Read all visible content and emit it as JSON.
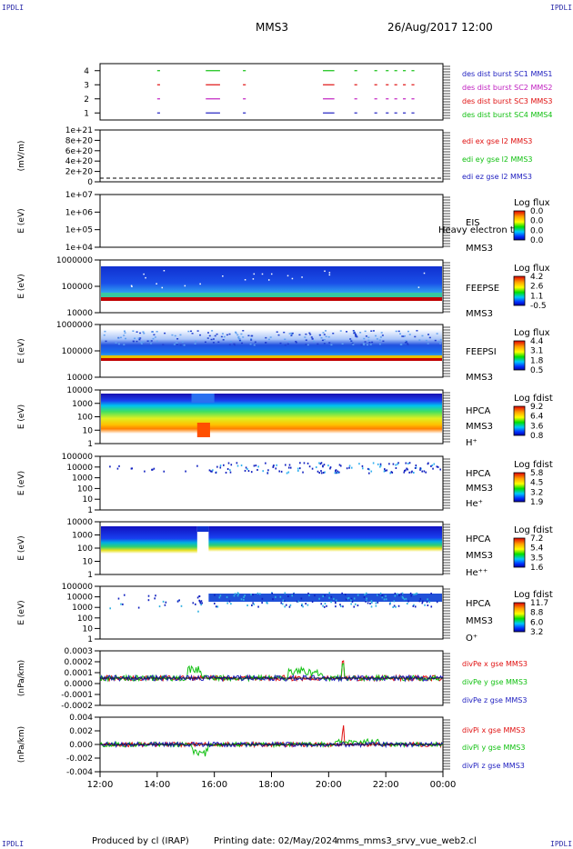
{
  "corners": {
    "tl": "IPDLI",
    "tr": "IPDLI",
    "bl": "IPDLI",
    "br": "IPDLI"
  },
  "header": {
    "spacecraft": "MMS3",
    "datetime": "26/Aug/2017 12:00"
  },
  "footer": {
    "produced_by": "Produced by cl (IRAP)",
    "printing_date": "Printing date: 02/May/2024",
    "product": "mms_mms3_srvy_vue_web2.cl"
  },
  "colors": {
    "mms1": "#2020c0",
    "mms2": "#c020c0",
    "mms3": "#e01010",
    "mms4": "#10c010",
    "x": "#e01010",
    "y": "#10c010",
    "z": "#2020c0"
  },
  "chart_data": [
    {
      "id": "burst",
      "type": "line",
      "ylim": [
        0.5,
        4.5
      ],
      "ticks": [
        "1",
        "2",
        "3",
        "4"
      ],
      "legend": [
        "des dist burst SC1 MMS1",
        "des dist burst SC2 MMS2",
        "des dist burst SC3 MMS3",
        "des dist burst SC4 MMS4"
      ],
      "series": [
        {
          "level": 4,
          "color": "#10c010",
          "segments": [
            [
              14.0,
              14.1
            ],
            [
              15.7,
              16.2
            ],
            [
              17.0,
              17.1
            ],
            [
              19.8,
              20.2
            ],
            [
              20.9,
              21.0
            ],
            [
              21.6,
              21.7
            ],
            [
              22.0,
              22.1
            ],
            [
              22.3,
              22.4
            ],
            [
              22.6,
              22.7
            ],
            [
              22.9,
              23.0
            ]
          ]
        },
        {
          "level": 3,
          "color": "#e01010",
          "segments": [
            [
              14.0,
              14.1
            ],
            [
              15.7,
              16.2
            ],
            [
              17.0,
              17.1
            ],
            [
              19.8,
              20.2
            ],
            [
              20.9,
              21.0
            ],
            [
              21.6,
              21.7
            ],
            [
              22.0,
              22.1
            ],
            [
              22.3,
              22.4
            ],
            [
              22.6,
              22.7
            ],
            [
              22.9,
              23.0
            ]
          ]
        },
        {
          "level": 2,
          "color": "#c020c0",
          "segments": [
            [
              14.0,
              14.1
            ],
            [
              15.7,
              16.2
            ],
            [
              17.0,
              17.1
            ],
            [
              19.8,
              20.2
            ],
            [
              20.9,
              21.0
            ],
            [
              21.6,
              21.7
            ],
            [
              22.0,
              22.1
            ],
            [
              22.3,
              22.4
            ],
            [
              22.6,
              22.7
            ],
            [
              22.9,
              23.0
            ]
          ]
        },
        {
          "level": 1,
          "color": "#2020c0",
          "segments": [
            [
              14.0,
              14.1
            ],
            [
              15.7,
              16.2
            ],
            [
              17.0,
              17.1
            ],
            [
              19.8,
              20.2
            ],
            [
              20.9,
              21.0
            ],
            [
              21.6,
              21.7
            ],
            [
              22.0,
              22.1
            ],
            [
              22.3,
              22.4
            ],
            [
              22.6,
              22.7
            ],
            [
              22.9,
              23.0
            ]
          ]
        }
      ]
    },
    {
      "id": "edi",
      "type": "line",
      "ylabel": "(mV/m)",
      "ticks": [
        "1e+21",
        "8e+20",
        "6e+20",
        "4e+20",
        "2e+20",
        "0"
      ],
      "legend": [
        "edi ex gse l2 MMS3",
        "edi ey gse l2 MMS3",
        "edi ez gse l2 MMS3"
      ],
      "legend_colors": [
        "#e01010",
        "#10c010",
        "#2020c0"
      ]
    },
    {
      "id": "eis",
      "type": "heatmap",
      "ylabel": "E (eV)",
      "ticks": [
        "1e+07",
        "1e+06",
        "1e+05",
        "1e+04"
      ],
      "labels": [
        "EIS",
        "MMS3"
      ],
      "overlay_label": "Heavy electron ton",
      "colorbar": {
        "title": "Log flux",
        "ticks": [
          "0.0",
          "0.0",
          "0.0",
          "0.0"
        ]
      }
    },
    {
      "id": "feepse",
      "type": "heatmap",
      "ylabel": "E (eV)",
      "ticks": [
        "1000000",
        "100000",
        "10000"
      ],
      "labels": [
        "FEEPSE",
        "MMS3"
      ],
      "colorbar": {
        "title": "Log flux",
        "ticks": [
          "4.2",
          "2.6",
          "1.1",
          "-0.5"
        ]
      }
    },
    {
      "id": "feepsi",
      "type": "heatmap",
      "ylabel": "E (eV)",
      "ticks": [
        "1000000",
        "100000",
        "10000"
      ],
      "labels": [
        "FEEPSI",
        "MMS3"
      ],
      "colorbar": {
        "title": "Log flux",
        "ticks": [
          "4.4",
          "3.1",
          "1.8",
          "0.5"
        ]
      }
    },
    {
      "id": "hpca_h",
      "type": "heatmap",
      "ylabel": "E (eV)",
      "ticks": [
        "10000",
        "1000",
        "100",
        "10",
        "1"
      ],
      "labels": [
        "HPCA",
        "MMS3",
        "H⁺"
      ],
      "colorbar": {
        "title": "Log fdist",
        "ticks": [
          "9.2",
          "6.4",
          "3.6",
          "0.8"
        ]
      }
    },
    {
      "id": "hpca_he",
      "type": "heatmap",
      "ylabel": "E (eV)",
      "ticks": [
        "100000",
        "10000",
        "1000",
        "100",
        "10",
        "1"
      ],
      "labels": [
        "HPCA",
        "MMS3",
        "He⁺"
      ],
      "colorbar": {
        "title": "Log fdist",
        "ticks": [
          "5.8",
          "4.5",
          "3.2",
          "1.9"
        ]
      }
    },
    {
      "id": "hpca_hepp",
      "type": "heatmap",
      "ylabel": "E (eV)",
      "ticks": [
        "10000",
        "1000",
        "100",
        "10",
        "1"
      ],
      "labels": [
        "HPCA",
        "MMS3",
        "He⁺⁺"
      ],
      "colorbar": {
        "title": "Log fdist",
        "ticks": [
          "7.2",
          "5.4",
          "3.5",
          "1.6"
        ]
      }
    },
    {
      "id": "hpca_o",
      "type": "heatmap",
      "ylabel": "E (eV)",
      "ticks": [
        "100000",
        "10000",
        "1000",
        "100",
        "10",
        "1"
      ],
      "labels": [
        "HPCA",
        "MMS3",
        "O⁺"
      ],
      "colorbar": {
        "title": "Log fdist",
        "ticks": [
          "11.7",
          "8.8",
          "6.0",
          "3.2"
        ]
      }
    },
    {
      "id": "divpe",
      "type": "line",
      "ylabel": "(nPa/km)",
      "ticks": [
        "0.0003",
        "0.0002",
        "0.0001",
        "0.0000",
        "-0.0001",
        "-0.0002"
      ],
      "legend": [
        "divPe x gse MMS3",
        "divPe y gse MMS3",
        "divPe z gse MMS3"
      ],
      "legend_colors": [
        "#e01010",
        "#10c010",
        "#2020c0"
      ]
    },
    {
      "id": "divpi",
      "type": "line",
      "ylabel": "(nPa/km)",
      "ticks": [
        "0.004",
        "0.002",
        "0.000",
        "-0.002",
        "-0.004"
      ],
      "legend": [
        "divPi x gse MMS3",
        "divPi y gse MMS3",
        "divPi z gse MMS3"
      ],
      "legend_colors": [
        "#e01010",
        "#10c010",
        "#2020c0"
      ]
    }
  ],
  "xaxis": {
    "ticks": [
      "12:00",
      "14:00",
      "16:00",
      "18:00",
      "20:00",
      "22:00",
      "00:00"
    ],
    "range_hours": [
      12,
      24
    ]
  }
}
